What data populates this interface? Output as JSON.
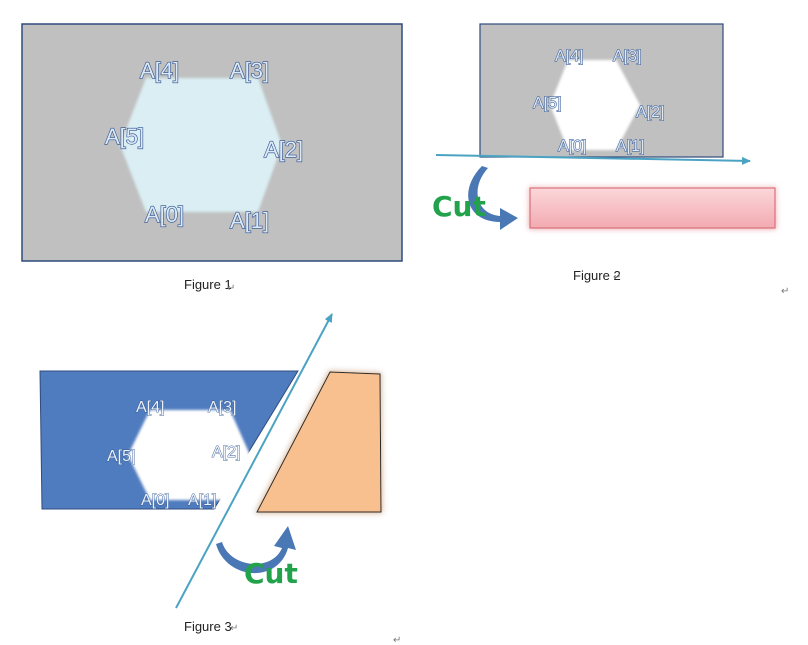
{
  "figure1": {
    "caption": "Figure 1",
    "vertex_labels": [
      "A[0]",
      "A[1]",
      "A[2]",
      "A[3]",
      "A[4]",
      "A[5]"
    ],
    "colors": {
      "plate": "#c0c0c0",
      "hole": "#daeef3",
      "border": "#2f4b7c"
    }
  },
  "figure2": {
    "caption": "Figure 2",
    "vertex_labels": [
      "A[0]",
      "A[1]",
      "A[2]",
      "A[3]",
      "A[4]",
      "A[5]"
    ],
    "cut_label": "Cut",
    "colors": {
      "plate": "#c0c0c0",
      "hole": "#ffffff",
      "piece": "#f6c0c4",
      "line": "#4ba3c3",
      "arrow": "#4a78b5"
    }
  },
  "figure3": {
    "caption": "Figure 3",
    "vertex_labels": [
      "A[0]",
      "A[1]",
      "A[2]",
      "A[3]",
      "A[4]",
      "A[5]"
    ],
    "cut_label": "Cut",
    "colors": {
      "plate": "#4f7cbf",
      "hole": "#ffffff",
      "piece": "#f9c08f",
      "line": "#4ba3c3",
      "arrow": "#4a78b5"
    }
  },
  "paragraph_mark": "↵"
}
